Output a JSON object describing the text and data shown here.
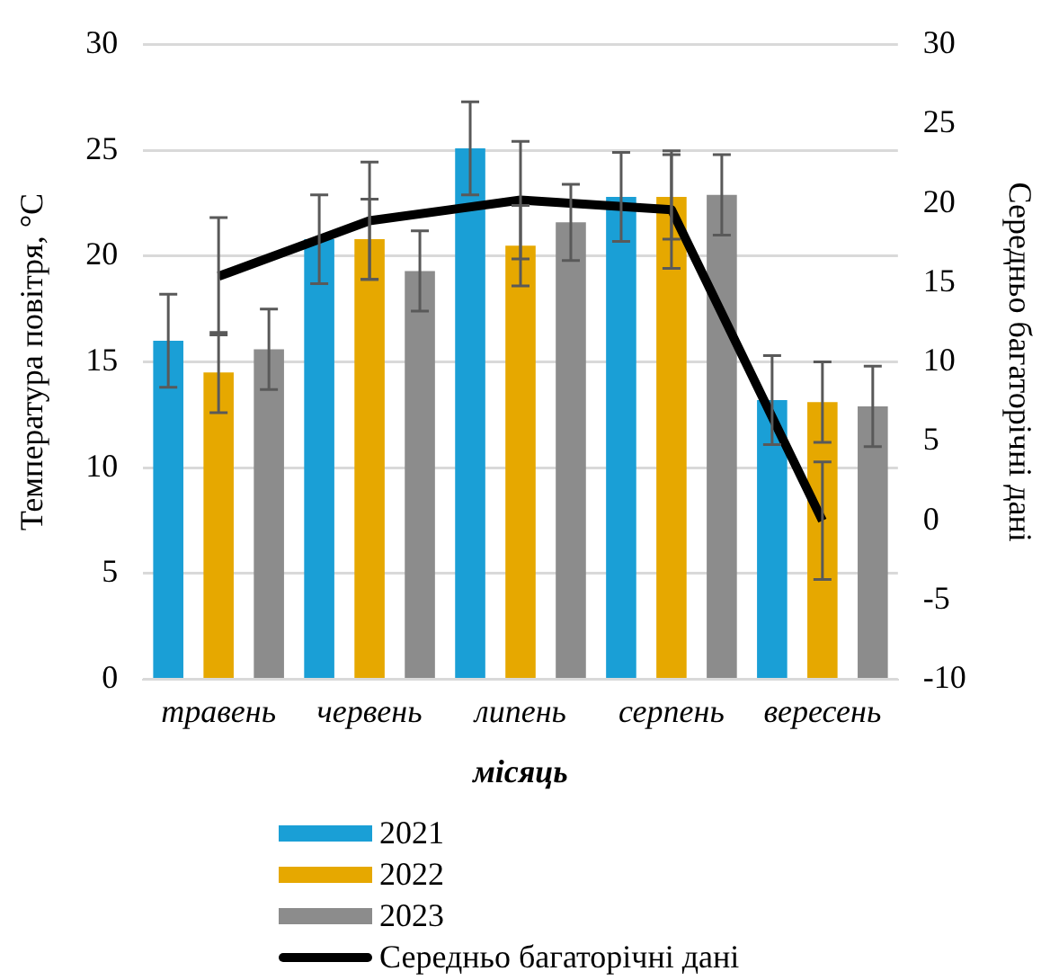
{
  "chart_data": {
    "type": "bar",
    "xlabel": "місяць",
    "ylabel": "Температура повітря, °С",
    "y2label": "Середньо багаторічні дані",
    "categories": [
      "травень",
      "червень",
      "липень",
      "серпень",
      "вересень"
    ],
    "series": [
      {
        "name": "2021",
        "color": "#1a9fd6",
        "values": [
          16.0,
          20.8,
          25.1,
          22.8,
          13.2
        ],
        "errors": [
          2.2,
          2.1,
          2.2,
          2.1,
          2.1
        ]
      },
      {
        "name": "2022",
        "color": "#e6a800",
        "values": [
          14.5,
          20.8,
          20.5,
          22.8,
          13.1
        ],
        "errors": [
          1.9,
          1.9,
          1.9,
          2.0,
          1.9
        ]
      },
      {
        "name": "2023",
        "color": "#8c8c8c",
        "values": [
          15.6,
          19.3,
          21.6,
          22.9,
          12.9
        ],
        "errors": [
          1.9,
          1.9,
          1.8,
          1.9,
          1.9
        ]
      },
      {
        "name": "Середньо багаторічні дані",
        "type": "line",
        "axis": "y2",
        "color": "#000000",
        "values": [
          15.4,
          18.9,
          20.2,
          19.6,
          0
        ],
        "errors": [
          3.7,
          3.7,
          3.7,
          3.7,
          3.7
        ]
      }
    ],
    "ylim": [
      0,
      30
    ],
    "yticks": [
      0,
      5,
      10,
      15,
      20,
      25,
      30
    ],
    "y2lim": [
      -10,
      30
    ],
    "y2ticks": [
      -10,
      -5,
      0,
      5,
      10,
      15,
      20,
      25,
      30
    ],
    "grid": "y",
    "legend": "bottom",
    "marker": "none"
  }
}
